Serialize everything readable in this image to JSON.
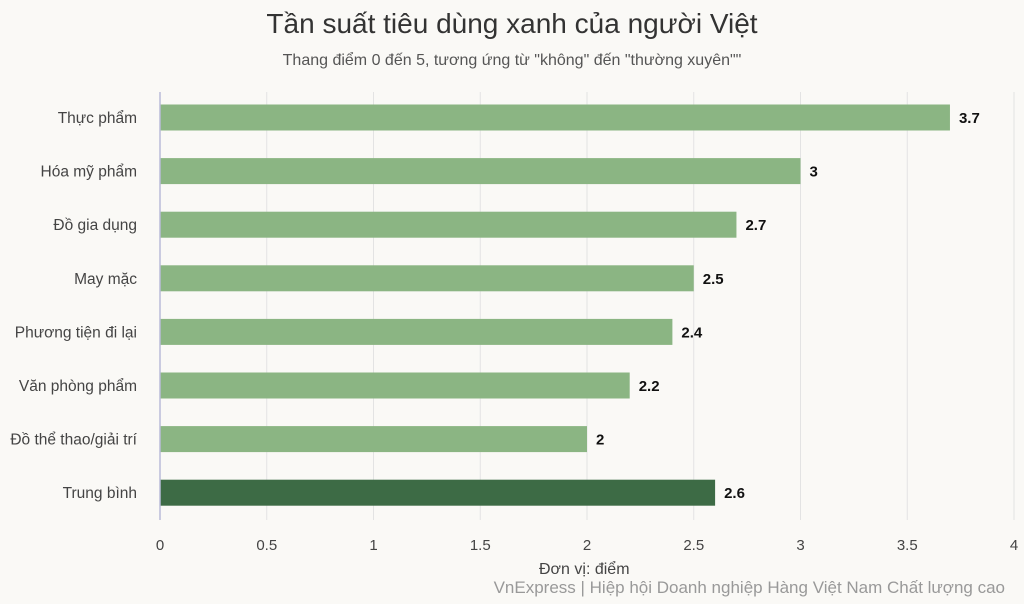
{
  "title": "Tần suất tiêu dùng xanh của người Việt",
  "subtitle": "Thang điểm 0 đến 5, tương ứng từ \"không\" đến \"thường xuyên\"\"",
  "unit_label": "Đơn vị: điểm",
  "source": "VnExpress | Hiệp hội Doanh nghiệp Hàng Việt Nam Chất lượng cao",
  "colors": {
    "bar": "#8bb583",
    "highlight": "#3d6b45",
    "grid": "#e3e3e3",
    "axis": "#b9bcd8",
    "label": "#444444",
    "value": "#111111"
  },
  "chart_data": {
    "type": "bar",
    "orientation": "horizontal",
    "categories": [
      "Thực phẩm",
      "Hóa mỹ phẩm",
      "Đồ gia dụng",
      "May mặc",
      "Phương tiện đi lại",
      "Văn phòng phẩm",
      "Đồ thể thao/giải trí",
      "Trung bình"
    ],
    "values": [
      3.7,
      3,
      2.7,
      2.5,
      2.4,
      2.2,
      2,
      2.6
    ],
    "value_labels": [
      "3.7",
      "3",
      "2.7",
      "2.5",
      "2.4",
      "2.2",
      "2",
      "2.6"
    ],
    "highlight_category": "Trung bình",
    "xlim": [
      0,
      4
    ],
    "x_ticks": [
      "0",
      "0.5",
      "1",
      "1.5",
      "2",
      "2.5",
      "3",
      "3.5",
      "4"
    ],
    "grid": true,
    "legend": "none"
  }
}
